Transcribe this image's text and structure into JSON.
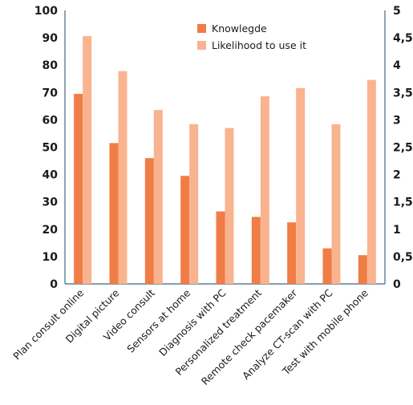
{
  "chart_data": {
    "type": "bar",
    "categories": [
      "Plan consult online",
      "Digital picture",
      "Video consult",
      "Sensors at home",
      "Diagnosis with PC",
      "Personalized treatment",
      "Remote check pacemaker",
      "Analyze CT-scan with PC",
      "Test with mobile phone"
    ],
    "series": [
      {
        "name": "Knowlegde",
        "axis": "left",
        "color": "#f07d45",
        "values": [
          69.5,
          51.5,
          46,
          39.5,
          26.5,
          24.5,
          22.5,
          13,
          10.5
        ]
      },
      {
        "name": "Likelihood to use it",
        "axis": "right",
        "color": "#f9b48f",
        "values": [
          4.53,
          3.89,
          3.18,
          2.92,
          2.85,
          3.43,
          3.58,
          2.92,
          3.73
        ]
      }
    ],
    "ylim_left": [
      0,
      100
    ],
    "yticks_left": [
      "0",
      "10",
      "20",
      "30",
      "40",
      "50",
      "60",
      "70",
      "80",
      "90",
      "100"
    ],
    "ylim_right": [
      0,
      5
    ],
    "yticks_right": [
      "0",
      "0,5",
      "1",
      "1,5",
      "2",
      "2,5",
      "3",
      "3,5",
      "4",
      "4,5",
      "5"
    ],
    "legend_position": "top-center",
    "grid": false,
    "axis_color": "#5a7d9a"
  }
}
